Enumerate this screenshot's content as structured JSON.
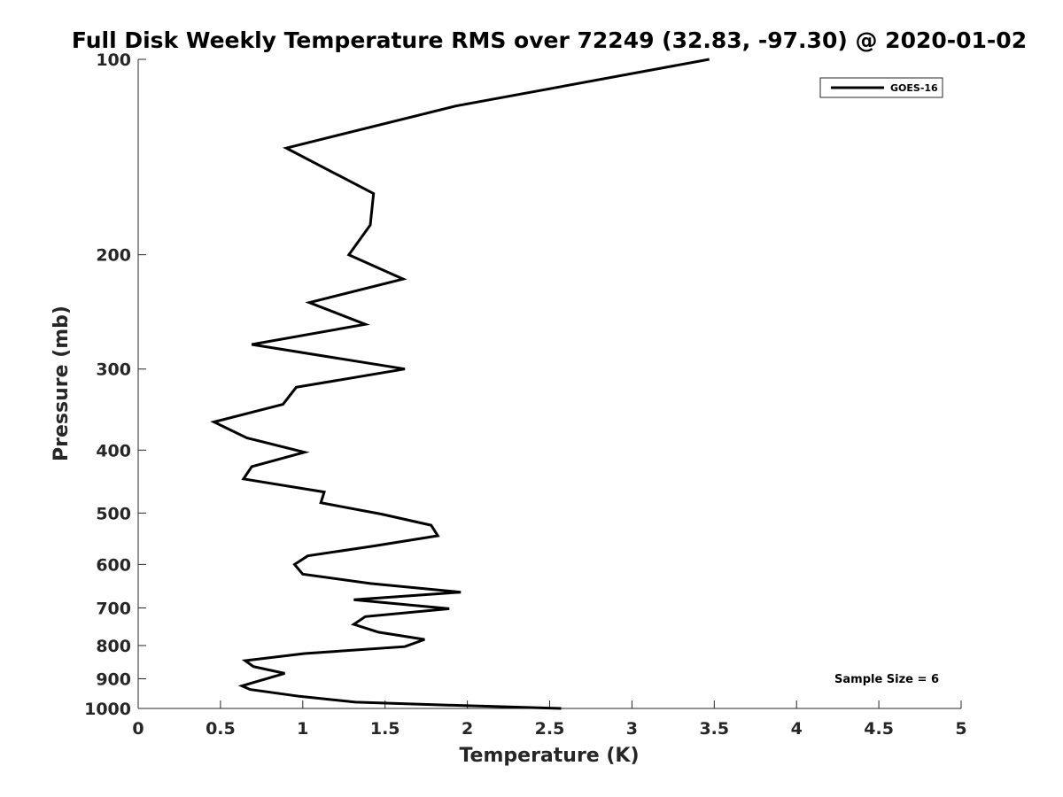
{
  "chart_data": {
    "type": "line",
    "title": "Full Disk Weekly Temperature RMS over 72249 (32.83, -97.30) @ 2020-01-02",
    "xlabel": "Temperature (K)",
    "ylabel": "Pressure (mb)",
    "xlim": [
      0,
      5
    ],
    "ylim": [
      1000,
      100
    ],
    "yscale": "log",
    "y_reversed": true,
    "xticks": [
      0,
      0.5,
      1,
      1.5,
      2,
      2.5,
      3,
      3.5,
      4,
      4.5,
      5
    ],
    "xtick_labels": [
      "0",
      "0.5",
      "1",
      "1.5",
      "2",
      "2.5",
      "3",
      "3.5",
      "4",
      "4.5",
      "5"
    ],
    "yticks": [
      100,
      200,
      300,
      400,
      500,
      600,
      700,
      800,
      900,
      1000
    ],
    "ytick_labels": [
      "100",
      "200",
      "300",
      "400",
      "500",
      "600",
      "700",
      "800",
      "900",
      "1000"
    ],
    "grid": false,
    "legend": {
      "placement": "top-right",
      "entries": [
        "GOES-16"
      ]
    },
    "annotation": "Sample Size = 6",
    "series": [
      {
        "name": "GOES-16",
        "color": "#000000",
        "points": [
          {
            "temp": 3.47,
            "p": 100
          },
          {
            "temp": 1.93,
            "p": 118
          },
          {
            "temp": 0.9,
            "p": 137
          },
          {
            "temp": 1.43,
            "p": 161
          },
          {
            "temp": 1.41,
            "p": 180
          },
          {
            "temp": 1.28,
            "p": 200
          },
          {
            "temp": 1.61,
            "p": 218
          },
          {
            "temp": 1.04,
            "p": 237
          },
          {
            "temp": 1.38,
            "p": 256
          },
          {
            "temp": 0.69,
            "p": 275
          },
          {
            "temp": 1.62,
            "p": 300
          },
          {
            "temp": 0.96,
            "p": 320
          },
          {
            "temp": 0.88,
            "p": 340
          },
          {
            "temp": 0.46,
            "p": 362
          },
          {
            "temp": 0.66,
            "p": 383
          },
          {
            "temp": 1.01,
            "p": 403
          },
          {
            "temp": 0.69,
            "p": 424
          },
          {
            "temp": 0.64,
            "p": 443
          },
          {
            "temp": 1.13,
            "p": 464
          },
          {
            "temp": 1.11,
            "p": 482
          },
          {
            "temp": 1.48,
            "p": 502
          },
          {
            "temp": 1.78,
            "p": 522
          },
          {
            "temp": 1.82,
            "p": 542
          },
          {
            "temp": 1.43,
            "p": 562
          },
          {
            "temp": 1.03,
            "p": 582
          },
          {
            "temp": 0.95,
            "p": 600
          },
          {
            "temp": 1.0,
            "p": 621
          },
          {
            "temp": 1.41,
            "p": 642
          },
          {
            "temp": 1.96,
            "p": 662
          },
          {
            "temp": 1.31,
            "p": 680
          },
          {
            "temp": 1.89,
            "p": 702
          },
          {
            "temp": 1.38,
            "p": 722
          },
          {
            "temp": 1.31,
            "p": 742
          },
          {
            "temp": 1.46,
            "p": 763
          },
          {
            "temp": 1.74,
            "p": 783
          },
          {
            "temp": 1.62,
            "p": 803
          },
          {
            "temp": 1.01,
            "p": 823
          },
          {
            "temp": 0.65,
            "p": 844
          },
          {
            "temp": 0.7,
            "p": 862
          },
          {
            "temp": 0.89,
            "p": 883
          },
          {
            "temp": 0.63,
            "p": 923
          },
          {
            "temp": 0.68,
            "p": 935
          },
          {
            "temp": 0.98,
            "p": 958
          },
          {
            "temp": 1.32,
            "p": 978
          },
          {
            "temp": 1.98,
            "p": 990
          },
          {
            "temp": 2.57,
            "p": 1000
          }
        ]
      }
    ]
  }
}
